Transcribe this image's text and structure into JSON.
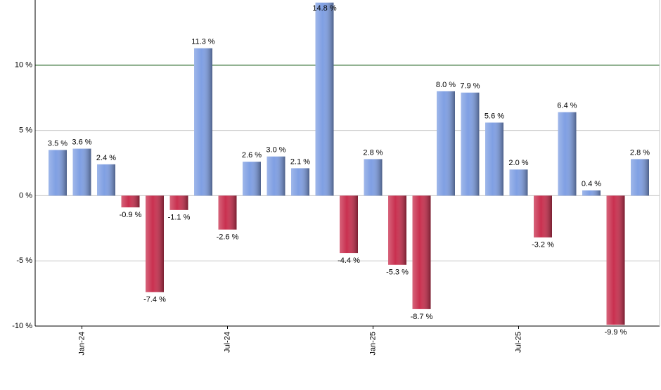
{
  "chart_data": {
    "type": "bar",
    "categories": [
      null,
      "Jan-24",
      null,
      null,
      null,
      null,
      null,
      "Jul-24",
      null,
      null,
      null,
      null,
      null,
      "Jan-25",
      null,
      null,
      null,
      null,
      null,
      "Jul-25",
      null,
      null,
      null,
      null,
      null
    ],
    "values": [
      3.5,
      3.6,
      2.4,
      -0.9,
      -7.4,
      -1.1,
      11.3,
      -2.6,
      2.6,
      3.0,
      2.1,
      14.8,
      -4.4,
      2.8,
      -5.3,
      -8.7,
      8.0,
      7.9,
      5.6,
      2.0,
      -3.2,
      6.4,
      0.4,
      -9.9,
      2.8
    ],
    "value_labels": [
      "3.5 %",
      "3.6 %",
      "2.4 %",
      "-0.9 %",
      "-7.4 %",
      "-1.1 %",
      "11.3 %",
      "-2.6 %",
      "2.6 %",
      "3.0 %",
      "2.1 %",
      "14.8 %",
      "-4.4 %",
      "2.8 %",
      "-5.3 %",
      "-8.7 %",
      "8.0 %",
      "7.9 %",
      "5.6 %",
      "2.0 %",
      "-3.2 %",
      "6.4 %",
      "0.4 %",
      "-9.9 %",
      "2.8 %"
    ],
    "positive_color": "#7f9fe3",
    "negative_color": "#c9304f",
    "ylim": [
      -10,
      15
    ],
    "yticks": [
      {
        "value": -10,
        "label": "-10 %"
      },
      {
        "value": -5,
        "label": "-5 %"
      },
      {
        "value": 0,
        "label": "0 %"
      },
      {
        "value": 5,
        "label": "5 %"
      },
      {
        "value": 10,
        "label": "10 %"
      }
    ],
    "grid": true,
    "reference_line": {
      "value": 10,
      "color": "#2e6b2e"
    }
  }
}
